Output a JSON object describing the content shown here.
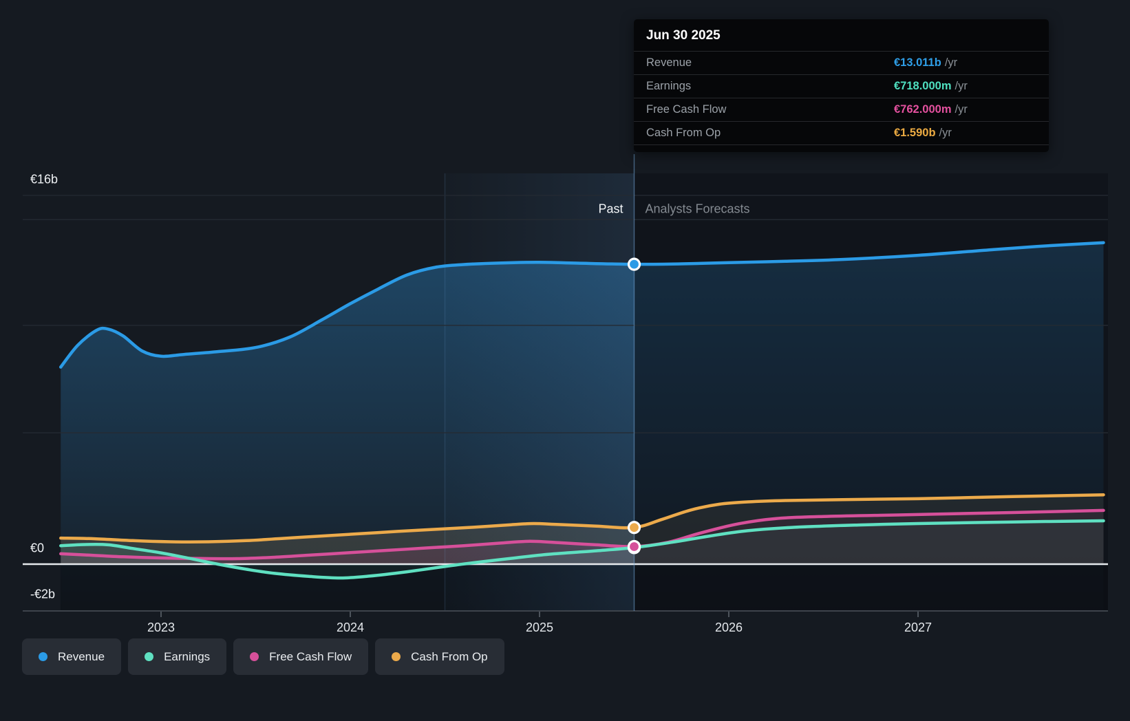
{
  "tooltip": {
    "date": "Jun 30 2025",
    "rows": [
      {
        "id": "revenue",
        "label": "Revenue",
        "value": "€13.011b",
        "suffix": "/yr",
        "color": "#2f9fe8"
      },
      {
        "id": "earnings",
        "label": "Earnings",
        "value": "€718.000m",
        "suffix": "/yr",
        "color": "#4fe0c0"
      },
      {
        "id": "fcf",
        "label": "Free Cash Flow",
        "value": "€762.000m",
        "suffix": "/yr",
        "color": "#e4519f"
      },
      {
        "id": "cashop",
        "label": "Cash From Op",
        "value": "€1.590b",
        "suffix": "/yr",
        "color": "#ebaa42"
      }
    ]
  },
  "sections": {
    "past_label": "Past",
    "forecast_label": "Analysts Forecasts"
  },
  "legend": [
    {
      "id": "revenue",
      "label": "Revenue",
      "color": "#2b9be6"
    },
    {
      "id": "earnings",
      "label": "Earnings",
      "color": "#5fe0c1"
    },
    {
      "id": "fcf",
      "label": "Free Cash Flow",
      "color": "#d6509a"
    },
    {
      "id": "cashop",
      "label": "Cash From Op",
      "color": "#ecaa4b"
    }
  ],
  "chart_data": {
    "type": "area",
    "title": "Past and forecast financials",
    "x_unit": "year",
    "y_unit": "EUR billions",
    "currency": "EUR",
    "xlim": [
      2022.47,
      2028.0
    ],
    "ylim": [
      -2,
      17
    ],
    "x_tick_values": [
      2023,
      2024,
      2025,
      2026,
      2027
    ],
    "x_tick_labels": [
      "2023",
      "2024",
      "2025",
      "2026",
      "2027"
    ],
    "y_tick_labels": [
      {
        "text": "€16b",
        "value": 16
      },
      {
        "text": "€0",
        "value": 0
      },
      {
        "text": "-€2b",
        "value": -2
      }
    ],
    "gridline_values": [
      16,
      14.95,
      10.36,
      5.7
    ],
    "zero_line_value": 0,
    "bottom_line_value": -2,
    "forecast_start_x": 2025.5,
    "highlight_band_x": [
      2024.5,
      2025.5
    ],
    "marker_x": 2025.5,
    "marker_date": "Jun 30 2025",
    "legend_position": "bottom-left",
    "series": [
      {
        "id": "revenue",
        "name": "Revenue",
        "color": "#2b9be6",
        "area": "deep",
        "marker_value": 13.011,
        "points": [
          [
            2022.47,
            8.55
          ],
          [
            2022.56,
            9.5
          ],
          [
            2022.66,
            10.15
          ],
          [
            2022.72,
            10.2
          ],
          [
            2022.8,
            9.9
          ],
          [
            2022.9,
            9.25
          ],
          [
            2023.0,
            9.02
          ],
          [
            2023.12,
            9.1
          ],
          [
            2023.3,
            9.22
          ],
          [
            2023.5,
            9.4
          ],
          [
            2023.68,
            9.85
          ],
          [
            2023.85,
            10.6
          ],
          [
            2024.0,
            11.3
          ],
          [
            2024.15,
            11.95
          ],
          [
            2024.3,
            12.55
          ],
          [
            2024.45,
            12.88
          ],
          [
            2024.6,
            13.0
          ],
          [
            2024.8,
            13.07
          ],
          [
            2025.0,
            13.1
          ],
          [
            2025.2,
            13.06
          ],
          [
            2025.5,
            13.011
          ],
          [
            2025.75,
            13.03
          ],
          [
            2026.0,
            13.08
          ],
          [
            2026.3,
            13.14
          ],
          [
            2026.6,
            13.22
          ],
          [
            2027.0,
            13.4
          ],
          [
            2027.4,
            13.65
          ],
          [
            2027.7,
            13.82
          ],
          [
            2027.98,
            13.95
          ]
        ]
      },
      {
        "id": "cashop",
        "name": "Cash From Op",
        "color": "#ecaa4b",
        "area": "zero",
        "marker_value": 1.59,
        "points": [
          [
            2022.47,
            1.13
          ],
          [
            2022.65,
            1.1
          ],
          [
            2022.85,
            1.02
          ],
          [
            2023.05,
            0.97
          ],
          [
            2023.25,
            0.97
          ],
          [
            2023.45,
            1.02
          ],
          [
            2023.65,
            1.12
          ],
          [
            2023.85,
            1.22
          ],
          [
            2024.05,
            1.32
          ],
          [
            2024.25,
            1.42
          ],
          [
            2024.45,
            1.51
          ],
          [
            2024.65,
            1.6
          ],
          [
            2024.85,
            1.71
          ],
          [
            2024.97,
            1.76
          ],
          [
            2025.1,
            1.72
          ],
          [
            2025.3,
            1.65
          ],
          [
            2025.5,
            1.59
          ],
          [
            2025.65,
            1.95
          ],
          [
            2025.8,
            2.35
          ],
          [
            2025.95,
            2.6
          ],
          [
            2026.1,
            2.7
          ],
          [
            2026.3,
            2.76
          ],
          [
            2026.6,
            2.8
          ],
          [
            2027.0,
            2.84
          ],
          [
            2027.5,
            2.93
          ],
          [
            2027.98,
            3.01
          ]
        ]
      },
      {
        "id": "fcf",
        "name": "Free Cash Flow",
        "color": "#d6509a",
        "area": "zero",
        "marker_value": 0.762,
        "points": [
          [
            2022.47,
            0.45
          ],
          [
            2022.6,
            0.4
          ],
          [
            2022.8,
            0.32
          ],
          [
            2023.0,
            0.27
          ],
          [
            2023.2,
            0.245
          ],
          [
            2023.4,
            0.24
          ],
          [
            2023.6,
            0.3
          ],
          [
            2023.8,
            0.4
          ],
          [
            2024.0,
            0.5
          ],
          [
            2024.2,
            0.6
          ],
          [
            2024.4,
            0.7
          ],
          [
            2024.6,
            0.8
          ],
          [
            2024.8,
            0.92
          ],
          [
            2024.95,
            0.99
          ],
          [
            2025.1,
            0.93
          ],
          [
            2025.3,
            0.84
          ],
          [
            2025.5,
            0.762
          ],
          [
            2025.68,
            0.95
          ],
          [
            2025.85,
            1.35
          ],
          [
            2026.05,
            1.75
          ],
          [
            2026.25,
            1.98
          ],
          [
            2026.5,
            2.07
          ],
          [
            2026.8,
            2.12
          ],
          [
            2027.1,
            2.17
          ],
          [
            2027.5,
            2.24
          ],
          [
            2027.98,
            2.33
          ]
        ]
      },
      {
        "id": "earnings",
        "name": "Earnings",
        "color": "#5fe0c1",
        "area": "zero",
        "marker_value": 0.718,
        "points": [
          [
            2022.47,
            0.8
          ],
          [
            2022.6,
            0.85
          ],
          [
            2022.72,
            0.84
          ],
          [
            2022.85,
            0.68
          ],
          [
            2023.0,
            0.49
          ],
          [
            2023.15,
            0.25
          ],
          [
            2023.3,
            0.0
          ],
          [
            2023.45,
            -0.22
          ],
          [
            2023.6,
            -0.4
          ],
          [
            2023.78,
            -0.53
          ],
          [
            2023.95,
            -0.6
          ],
          [
            2024.1,
            -0.52
          ],
          [
            2024.3,
            -0.33
          ],
          [
            2024.5,
            -0.1
          ],
          [
            2024.65,
            0.06
          ],
          [
            2024.85,
            0.25
          ],
          [
            2025.05,
            0.43
          ],
          [
            2025.3,
            0.58
          ],
          [
            2025.5,
            0.718
          ],
          [
            2025.7,
            0.95
          ],
          [
            2025.9,
            1.22
          ],
          [
            2026.1,
            1.45
          ],
          [
            2026.35,
            1.6
          ],
          [
            2026.7,
            1.7
          ],
          [
            2027.0,
            1.76
          ],
          [
            2027.5,
            1.83
          ],
          [
            2027.98,
            1.88
          ]
        ]
      }
    ]
  }
}
